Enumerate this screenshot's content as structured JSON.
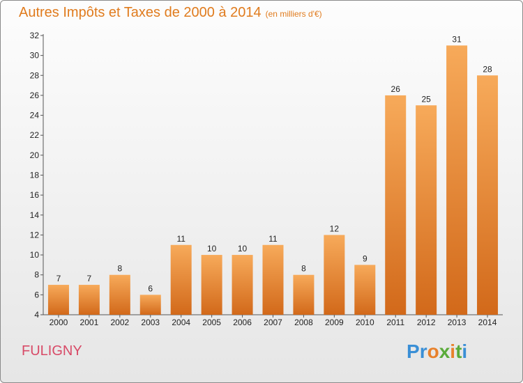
{
  "title": "Autres Impôts et Taxes de 2000 à 2014",
  "unit": "(en milliers d'€)",
  "location": "FULIGNY",
  "logo": {
    "letters": [
      "P",
      "r",
      "o",
      "x",
      "i",
      "t",
      "i"
    ],
    "colors": [
      "#3a8fd6",
      "#3a8fd6",
      "#e8812b",
      "#5aab3a",
      "#e8812b",
      "#5aab3a",
      "#3a8fd6"
    ]
  },
  "colors": {
    "bar_light": "#f7aa5a",
    "bar_dark": "#d2691a",
    "title": "#e07b1d",
    "location": "#d84a67"
  },
  "chart_data": {
    "type": "bar",
    "categories": [
      "2000",
      "2001",
      "2002",
      "2003",
      "2004",
      "2005",
      "2006",
      "2007",
      "2008",
      "2009",
      "2010",
      "2011",
      "2012",
      "2013",
      "2014"
    ],
    "values": [
      7,
      7,
      8,
      6,
      11,
      10,
      10,
      11,
      8,
      12,
      9,
      26,
      25,
      31,
      28
    ],
    "ylim": [
      4,
      32
    ],
    "yticks": [
      4,
      6,
      8,
      10,
      12,
      14,
      16,
      18,
      20,
      22,
      24,
      26,
      28,
      30,
      32
    ],
    "grid": false,
    "data_labels": true
  }
}
